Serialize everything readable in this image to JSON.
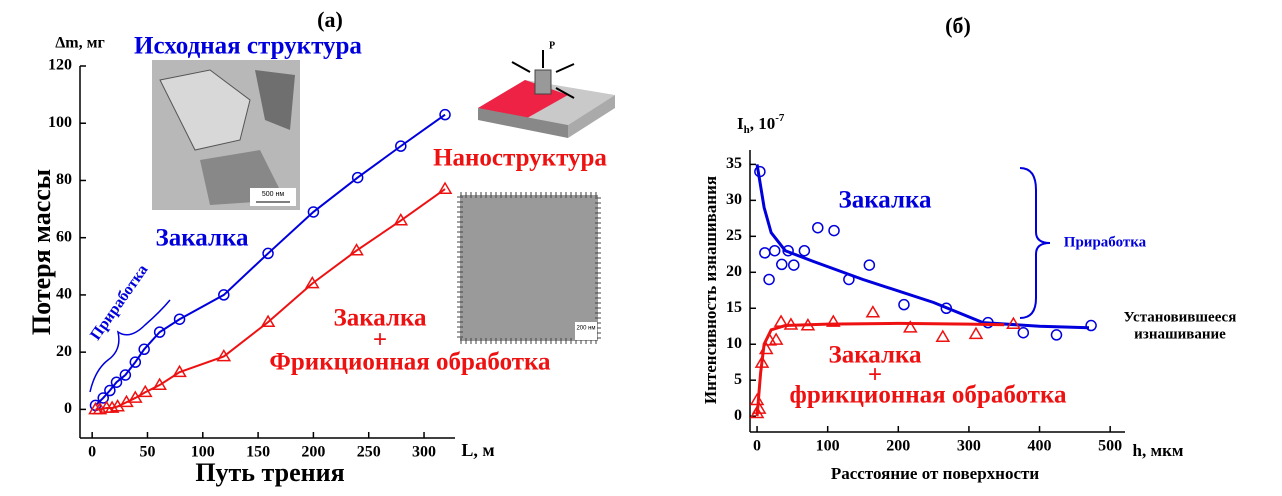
{
  "chart_data": [
    {
      "type": "line",
      "title": "(а)",
      "x_label": "Путь трения",
      "x_unit": "L, м",
      "y_label": "Потеря массы",
      "y_unit": "Δm, мг",
      "xlim": [
        -11,
        328
      ],
      "ylim": [
        -10,
        120
      ],
      "xticks": [
        0,
        50,
        100,
        150,
        200,
        250,
        300
      ],
      "yticks": [
        0,
        20,
        40,
        60,
        80,
        100,
        120
      ],
      "series": [
        {
          "name": "Закалка",
          "color": "#0000dd",
          "marker": "circle",
          "x": [
            3,
            10,
            16,
            22,
            30,
            39,
            47,
            61,
            79,
            119,
            159,
            200,
            240,
            279,
            319
          ],
          "values": [
            1.4,
            4,
            6.6,
            9.5,
            12,
            16.5,
            21,
            27,
            31.5,
            40,
            54.5,
            69,
            81,
            92,
            103
          ]
        },
        {
          "label_lines": [
            "Закалка",
            "+",
            "Фрикционная обработка"
          ],
          "color": "#ee1111",
          "marker": "triangle",
          "x": [
            3,
            7,
            13,
            18,
            23,
            31,
            39,
            48,
            61,
            79,
            119,
            159,
            199,
            239,
            279,
            319
          ],
          "values": [
            0,
            0,
            0.5,
            0.5,
            1,
            2.5,
            4,
            6,
            8.5,
            13,
            18.5,
            30.5,
            44,
            55.5,
            66,
            77
          ]
        }
      ],
      "annotations": [
        "Исходная структура",
        "Наноструктура",
        "Приработка",
        "500 нм",
        "200 нм",
        "P"
      ]
    },
    {
      "type": "scatter",
      "title": "(б)",
      "x_label": "Расстояние от поверхности",
      "x_unit": "h, мкм",
      "y_label": "Интенсивность изнашивания",
      "y_unit": {
        "symbol": "I",
        "sub": "h",
        "rest": ", 10",
        "sup": "-7"
      },
      "xlim": [
        -10,
        521
      ],
      "ylim": [
        -2.2,
        37
      ],
      "xticks": [
        0,
        100,
        200,
        300,
        400,
        500
      ],
      "yticks": [
        0,
        5,
        10,
        15,
        20,
        25,
        30,
        35
      ],
      "series": [
        {
          "name": "Закалка",
          "color": "#0000dd",
          "marker": "circle",
          "x": [
            4,
            11,
            17,
            25,
            35,
            44,
            52,
            67,
            86,
            109,
            130,
            159,
            208,
            268,
            327,
            377,
            424,
            473
          ],
          "values": [
            34,
            22.7,
            19,
            23,
            21.1,
            23,
            21,
            23,
            26.2,
            25.8,
            19,
            21,
            15.5,
            15,
            13,
            11.6,
            11.3,
            12.6
          ],
          "fit_x": [
            0,
            10,
            20,
            40,
            80,
            150,
            250,
            320,
            400,
            470
          ],
          "fit_values": [
            35,
            29,
            25.5,
            23,
            21.5,
            19,
            15.8,
            13,
            12.5,
            12.3
          ]
        },
        {
          "label_lines": [
            "Закалка",
            "+",
            "фрикционная обработка"
          ],
          "color": "#ee1111",
          "marker": "triangle",
          "x": [
            0,
            0,
            3,
            7,
            13,
            18,
            27,
            34,
            48,
            72,
            108,
            164,
            217,
            263,
            310,
            363
          ],
          "values": [
            0.4,
            2.2,
            1,
            7.4,
            9.3,
            10.5,
            10.6,
            13.1,
            12.7,
            12.6,
            13.1,
            14.4,
            12.3,
            11,
            11.4,
            12.8
          ],
          "fit_x": [
            0,
            5,
            10,
            20,
            40,
            100,
            200,
            300,
            350
          ],
          "fit_values": [
            0,
            6,
            10,
            12,
            12.6,
            12.8,
            12.9,
            12.8,
            12.7
          ]
        }
      ],
      "annotations": [
        "Приработка",
        "Установившееся",
        "изнашивание"
      ]
    }
  ]
}
